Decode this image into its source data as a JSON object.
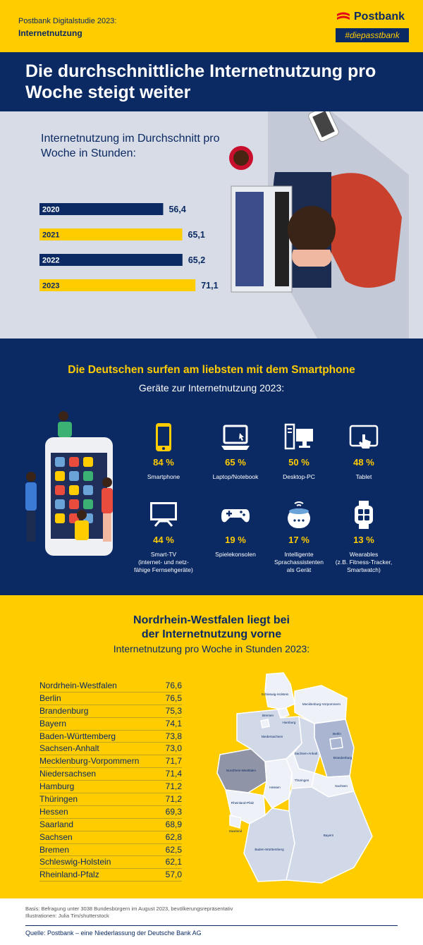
{
  "header": {
    "study": "Postbank Digitalstudie 2023:",
    "topic": "Internetnutzung",
    "logo_word": "Postbank",
    "logo_tag": "#diepasstbank"
  },
  "title": "Die durchschnittliche Internetnutzung pro Woche steigt weiter",
  "section1": {
    "subtitle": "Internetnutzung im Durchschnitt pro Woche in Stunden:"
  },
  "colors": {
    "navy": "#0b2a63",
    "yellow": "#ffcc00",
    "light": "#d7dce6"
  },
  "chart_data": [
    {
      "type": "bar",
      "orientation": "horizontal",
      "categories": [
        "2020",
        "2021",
        "2022",
        "2023"
      ],
      "values": [
        56.4,
        65.1,
        65.2,
        71.1
      ],
      "value_labels": [
        "56,4",
        "65,1",
        "65,2",
        "71,1"
      ],
      "bar_colors": [
        "#0b2a63",
        "#ffcc00",
        "#0b2a63",
        "#ffcc00"
      ]
    },
    {
      "type": "table",
      "rows": [
        {
          "state": "Nordrhein-Westfalen",
          "value": "76,6"
        },
        {
          "state": "Berlin",
          "value": "76,5"
        },
        {
          "state": "Brandenburg",
          "value": "75,3"
        },
        {
          "state": "Bayern",
          "value": "74,1"
        },
        {
          "state": "Baden-Württemberg",
          "value": "73,8"
        },
        {
          "state": "Sachsen-Anhalt",
          "value": "73,0"
        },
        {
          "state": "Mecklenburg-Vorpommern",
          "value": "71,7"
        },
        {
          "state": "Niedersachsen",
          "value": "71,4"
        },
        {
          "state": "Hamburg",
          "value": "71,2"
        },
        {
          "state": "Thüringen",
          "value": "71,2"
        },
        {
          "state": "Hessen",
          "value": "69,3"
        },
        {
          "state": "Saarland",
          "value": "68,9"
        },
        {
          "state": "Sachsen",
          "value": "62,8"
        },
        {
          "state": "Bremen",
          "value": "62,5"
        },
        {
          "state": "Schleswig-Holstein",
          "value": "62,1"
        },
        {
          "state": "Rheinland-Pfalz",
          "value": "57,0"
        }
      ]
    }
  ],
  "section2": {
    "heading": "Die Deutschen surfen am liebsten mit dem Smartphone",
    "subheading": "Geräte zur Internetnutzung 2023:",
    "devices": [
      {
        "icon": "smartphone-icon",
        "pct": "84 %",
        "label": "Smartphone"
      },
      {
        "icon": "laptop-icon",
        "pct": "65 %",
        "label": "Laptop/Notebook"
      },
      {
        "icon": "desktop-pc-icon",
        "pct": "50 %",
        "label": "Desktop-PC"
      },
      {
        "icon": "tablet-icon",
        "pct": "48 %",
        "label": "Tablet"
      },
      {
        "icon": "smart-tv-icon",
        "pct": "44 %",
        "label": "Smart-TV\n(internet- und netz-\nfähige Fernsehgeräte)"
      },
      {
        "icon": "gamepad-icon",
        "pct": "19 %",
        "label": "Spielekonsolen"
      },
      {
        "icon": "smart-speaker-icon",
        "pct": "17 %",
        "label": "Intelligente\nSprachassistenten\nals Gerät"
      },
      {
        "icon": "smartwatch-icon",
        "pct": "13 %",
        "label": "Wearables\n(z.B. Fitness-Tracker,\nSmartwatch)"
      }
    ]
  },
  "section3": {
    "heading": "Nordrhein-Westfalen liegt bei der Internetnutzung vorne",
    "subheading": "Internetnutzung pro Woche in Stunden 2023:",
    "map_labels": {
      "sh": "Schleswig-Holstein",
      "mv": "Mecklenburg-Vorpommern",
      "hh": "Hamburg",
      "hb": "Bremen",
      "ni": "Niedersachsen",
      "be": "Berlin",
      "bb": "Brandenburg",
      "nrw": "Nordrhein-Westfalen",
      "st": "Sachsen-Anhalt",
      "th": "Thüringen",
      "he": "Hessen",
      "sn": "Sachsen",
      "rp": "Rheinland-Pfalz",
      "sl": "Saarland",
      "bw": "Baden-Württemberg",
      "by": "Bayern"
    }
  },
  "footer": {
    "basis": "Basis: Befragung unter 3038 Bundesbürgern im August 2023, bevölkerungsrepräsentativ",
    "illustrations": "Illustrationen: Julia Tim/shutterstock",
    "source": "Quelle: Postbank – eine Niederlassung der Deutsche Bank AG"
  }
}
